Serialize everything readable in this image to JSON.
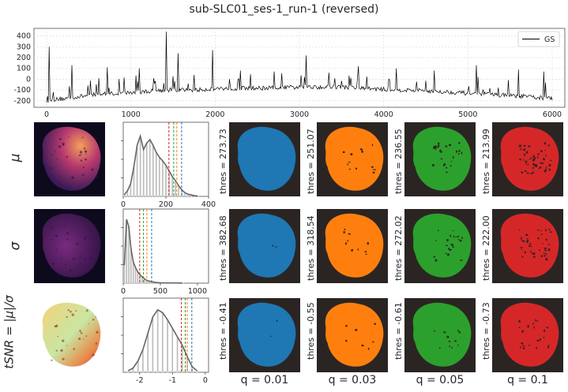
{
  "figure": {
    "title": "sub-SLC01_ses-1_run-1 (reversed)",
    "row_labels": [
      "μ",
      "σ",
      "tSNR = |μ|/σ"
    ],
    "column_labels": [
      "q = 0.01",
      "q = 0.03",
      "q = 0.05",
      "q = 0.1"
    ],
    "colors": {
      "q01": "#1f77b4",
      "q03": "#ff7f0e",
      "q05": "#2ca02c",
      "q10": "#d62728",
      "bg": "#2a2523",
      "hist_fill": "#bdbdbd",
      "kde": "#666666"
    }
  },
  "chart_data": [
    {
      "type": "line",
      "name": "global-signal",
      "legend": "GS",
      "legend_position": "top-right",
      "grid": true,
      "xlim": [
        -150,
        6150
      ],
      "ylim": [
        -260,
        470
      ],
      "xticks": [
        0,
        1000,
        2000,
        3000,
        4000,
        5000,
        6000
      ],
      "yticks": [
        -200,
        -100,
        0,
        100,
        200,
        300,
        400
      ],
      "baseline": [
        [
          0,
          -200
        ],
        [
          300,
          -170
        ],
        [
          600,
          -140
        ],
        [
          1000,
          -125
        ],
        [
          1400,
          -100
        ],
        [
          1800,
          -100
        ],
        [
          2000,
          -85
        ],
        [
          2400,
          -85
        ],
        [
          3000,
          -75
        ],
        [
          3400,
          -70
        ],
        [
          4000,
          -95
        ],
        [
          4600,
          -110
        ],
        [
          5000,
          -130
        ],
        [
          5600,
          -155
        ],
        [
          6000,
          -180
        ]
      ],
      "spikes": [
        [
          30,
          300
        ],
        [
          300,
          130
        ],
        [
          720,
          110
        ],
        [
          1100,
          100
        ],
        [
          1420,
          440
        ],
        [
          1560,
          240
        ],
        [
          1970,
          270
        ],
        [
          2300,
          80
        ],
        [
          2700,
          70
        ],
        [
          3080,
          220
        ],
        [
          3350,
          60
        ],
        [
          3700,
          120
        ],
        [
          4150,
          100
        ],
        [
          4600,
          80
        ],
        [
          5100,
          130
        ],
        [
          5600,
          90
        ],
        [
          5900,
          70
        ]
      ]
    },
    {
      "type": "histogram",
      "name": "mean-histogram",
      "xlim": [
        0,
        400
      ],
      "xticks": [
        0,
        200,
        400
      ],
      "bins": [
        [
          5,
          0.02
        ],
        [
          20,
          0.08
        ],
        [
          35,
          0.18
        ],
        [
          50,
          0.42
        ],
        [
          65,
          0.72
        ],
        [
          80,
          0.85
        ],
        [
          95,
          0.66
        ],
        [
          110,
          0.75
        ],
        [
          125,
          0.8
        ],
        [
          140,
          0.72
        ],
        [
          155,
          0.62
        ],
        [
          170,
          0.55
        ],
        [
          185,
          0.5
        ],
        [
          200,
          0.44
        ],
        [
          215,
          0.36
        ],
        [
          230,
          0.28
        ],
        [
          245,
          0.22
        ],
        [
          260,
          0.15
        ],
        [
          275,
          0.09
        ],
        [
          290,
          0.05
        ],
        [
          305,
          0.03
        ],
        [
          320,
          0.02
        ],
        [
          335,
          0.01
        ],
        [
          350,
          0.005
        ]
      ],
      "thresholds": [
        273.73,
        251.07,
        236.55,
        213.99
      ]
    },
    {
      "type": "histogram",
      "name": "std-histogram",
      "xlim": [
        0,
        1150
      ],
      "xticks": [
        0,
        500,
        1000
      ],
      "bins": [
        [
          15,
          0.25
        ],
        [
          45,
          0.9
        ],
        [
          75,
          0.8
        ],
        [
          105,
          0.48
        ],
        [
          135,
          0.3
        ],
        [
          165,
          0.22
        ],
        [
          195,
          0.16
        ],
        [
          225,
          0.12
        ],
        [
          255,
          0.09
        ],
        [
          285,
          0.06
        ],
        [
          315,
          0.04
        ],
        [
          345,
          0.03
        ],
        [
          375,
          0.02
        ],
        [
          405,
          0.015
        ],
        [
          435,
          0.01
        ],
        [
          465,
          0.008
        ],
        [
          495,
          0.005
        ],
        [
          600,
          0.003
        ],
        [
          800,
          0.002
        ]
      ],
      "thresholds": [
        382.68,
        318.54,
        272.02,
        222.0
      ]
    },
    {
      "type": "histogram",
      "name": "tsnr-histogram",
      "xlim": [
        -2.5,
        0.1
      ],
      "xticks": [
        -2,
        -1,
        0
      ],
      "bins": [
        [
          -2.35,
          0.02
        ],
        [
          -2.2,
          0.06
        ],
        [
          -2.05,
          0.16
        ],
        [
          -1.9,
          0.32
        ],
        [
          -1.75,
          0.55
        ],
        [
          -1.6,
          0.78
        ],
        [
          -1.45,
          0.88
        ],
        [
          -1.3,
          0.84
        ],
        [
          -1.15,
          0.74
        ],
        [
          -1.0,
          0.62
        ],
        [
          -0.85,
          0.5
        ],
        [
          -0.7,
          0.38
        ],
        [
          -0.55,
          0.22
        ],
        [
          -0.4,
          0.08
        ],
        [
          -0.25,
          0.02
        ]
      ],
      "thresholds": [
        -0.41,
        -0.55,
        -0.61,
        -0.73
      ]
    }
  ],
  "thresholds_text": [
    [
      "thres = 273.73",
      "thres = 251.07",
      "thres = 236.55",
      "thres = 213.99"
    ],
    [
      "thres = 382.68",
      "thres = 318.54",
      "thres = 272.02",
      "thres = 222.00"
    ],
    [
      "thres = -0.41",
      "thres = -0.55",
      "thres = -0.61",
      "thres = -0.73"
    ]
  ]
}
